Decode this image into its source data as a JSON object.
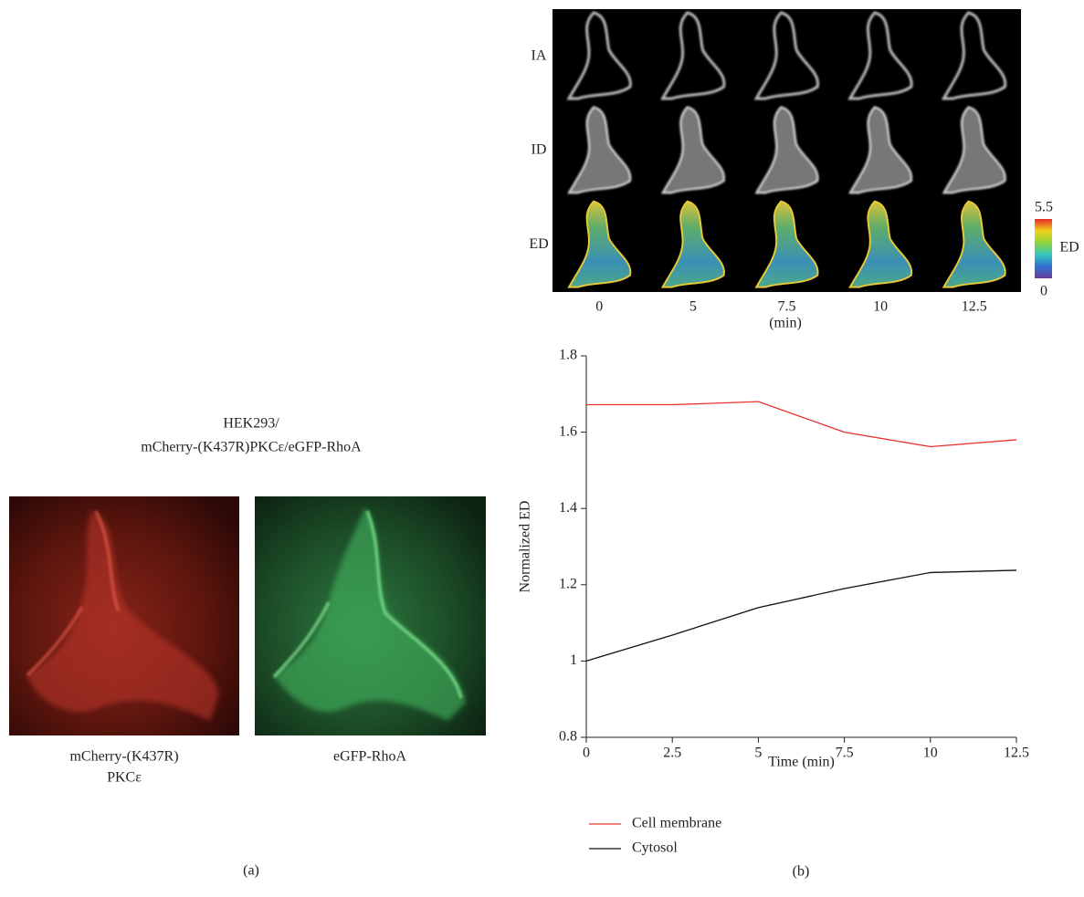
{
  "panel_a": {
    "title_line1": "HEK293/",
    "title_line2": "mCherry-(K437R)PKCε/eGFP-RhoA",
    "left_caption_line1": "mCherry-(K437R)",
    "left_caption_line2": "PKCε",
    "right_caption": "eGFP-RhoA",
    "label": "(a)"
  },
  "image_strip": {
    "rows": [
      "IA",
      "ID",
      "ED"
    ],
    "columns": [
      "0",
      "5",
      "7.5",
      "10",
      "12.5"
    ],
    "column_unit": "(min)",
    "colorbar": {
      "max": "5.5",
      "min": "0",
      "label": "ED"
    }
  },
  "panel_b": {
    "label": "(b)"
  },
  "chart_data": {
    "type": "line",
    "x_label": "Time (min)",
    "y_label": "Normalized ED",
    "x": [
      0,
      2.5,
      5,
      7.5,
      10,
      12.5
    ],
    "series": [
      {
        "name": "Cell membrane",
        "color": "#e8312a",
        "values": [
          1.672,
          1.672,
          1.68,
          1.6,
          1.562,
          1.58
        ]
      },
      {
        "name": "Cytosol",
        "color": "#111111",
        "values": [
          1.0,
          1.068,
          1.14,
          1.19,
          1.232,
          1.238
        ]
      }
    ],
    "xlim": [
      0,
      12.5
    ],
    "ylim": [
      0.8,
      1.8
    ],
    "xticks": [
      0,
      2.5,
      5,
      7.5,
      10,
      12.5
    ],
    "yticks": [
      0.8,
      1,
      1.2,
      1.4,
      1.6,
      1.8
    ]
  }
}
